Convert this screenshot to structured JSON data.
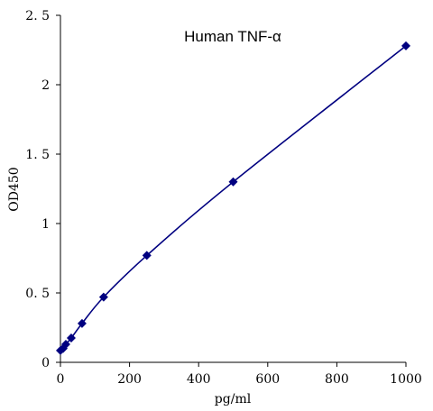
{
  "chart_data": {
    "type": "scatter",
    "title": "Human TNF-α",
    "xlabel": "pg/ml",
    "ylabel": "OD450",
    "xlim": [
      0,
      1000
    ],
    "ylim": [
      0,
      2.5
    ],
    "x_ticks": [
      0,
      200,
      400,
      600,
      800,
      1000
    ],
    "x_tick_labels": [
      "0",
      "200",
      "400",
      "600",
      "800",
      "1000"
    ],
    "y_ticks": [
      0,
      0.5,
      1,
      1.5,
      2,
      2.5
    ],
    "y_tick_labels": [
      "0",
      "0. 5",
      "1",
      "1. 5",
      "2",
      "2. 5"
    ],
    "grid": false,
    "legend": "none",
    "series": [
      {
        "x": [
          0,
          7.8,
          15.6,
          31.25,
          62.5,
          125,
          250,
          500,
          1000
        ],
        "y": [
          0.085,
          0.1,
          0.13,
          0.175,
          0.28,
          0.47,
          0.77,
          1.3,
          2.28
        ],
        "color": "#000080",
        "marker": "diamond",
        "line": "smooth"
      }
    ]
  }
}
